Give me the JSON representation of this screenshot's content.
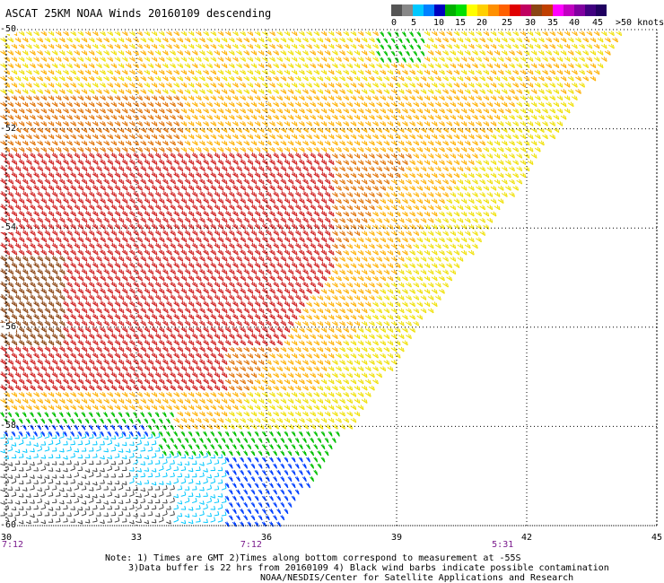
{
  "title": "ASCAT 25KM NOAA Winds 20160109 descending",
  "colorbar": {
    "colors": [
      "#555555",
      "#888888",
      "#00c8ff",
      "#0080ff",
      "#0000c0",
      "#00b000",
      "#00e000",
      "#ffff00",
      "#ffd000",
      "#ff9000",
      "#ff6000",
      "#e00000",
      "#c00060",
      "#8b4513",
      "#c04000",
      "#ff00ff",
      "#c000c0",
      "#8000a0",
      "#400080",
      "#200060"
    ],
    "labels": [
      {
        "text": "0",
        "x": 436
      },
      {
        "text": "5",
        "x": 458
      },
      {
        "text": "10",
        "x": 483
      },
      {
        "text": "15",
        "x": 507
      },
      {
        "text": "20",
        "x": 531
      },
      {
        "text": "25",
        "x": 559
      },
      {
        "text": "30",
        "x": 585
      },
      {
        "text": "35",
        "x": 610
      },
      {
        "text": "40",
        "x": 634
      },
      {
        "text": "45",
        "x": 660
      },
      {
        "text": ">50 knots",
        "x": 686
      }
    ]
  },
  "map": {
    "lon_range": [
      30,
      45
    ],
    "lat_range": [
      -60,
      -50
    ],
    "lon_ticks": [
      "30",
      "33",
      "36",
      "39",
      "42",
      "45"
    ],
    "lat_ticks": [
      "-50",
      "-52",
      "-54",
      "-56",
      "-58",
      "-60"
    ],
    "grid": "dotted",
    "swath": "descending pass, diagonal edge from 44E,-50 to 36E,-60",
    "wind_barb_colors": {
      "0-5": "#444444",
      "5-10": "#00c8ff",
      "10-15": "#0040ff",
      "15-20": "#00c000",
      "20-25": "#f0e000",
      "25-30": "#ffb000",
      "30-35": "#e07000",
      "35-40": "#d02020",
      "40-45": "#8b4513"
    }
  },
  "times": [
    {
      "text": "7:12",
      "lon": 30
    },
    {
      "text": "7:12",
      "lon": 35.5
    },
    {
      "text": "5:31",
      "lon": 41.3
    }
  ],
  "notes": [
    "Note: 1) Times are GMT 2)Times along bottom correspond to measurement at -55S",
    "3)Data buffer is 22 hrs from 20160109 4) Black wind barbs indicate possible contamination",
    "NOAA/NESDIS/Center for Satellite Applications and Research"
  ]
}
